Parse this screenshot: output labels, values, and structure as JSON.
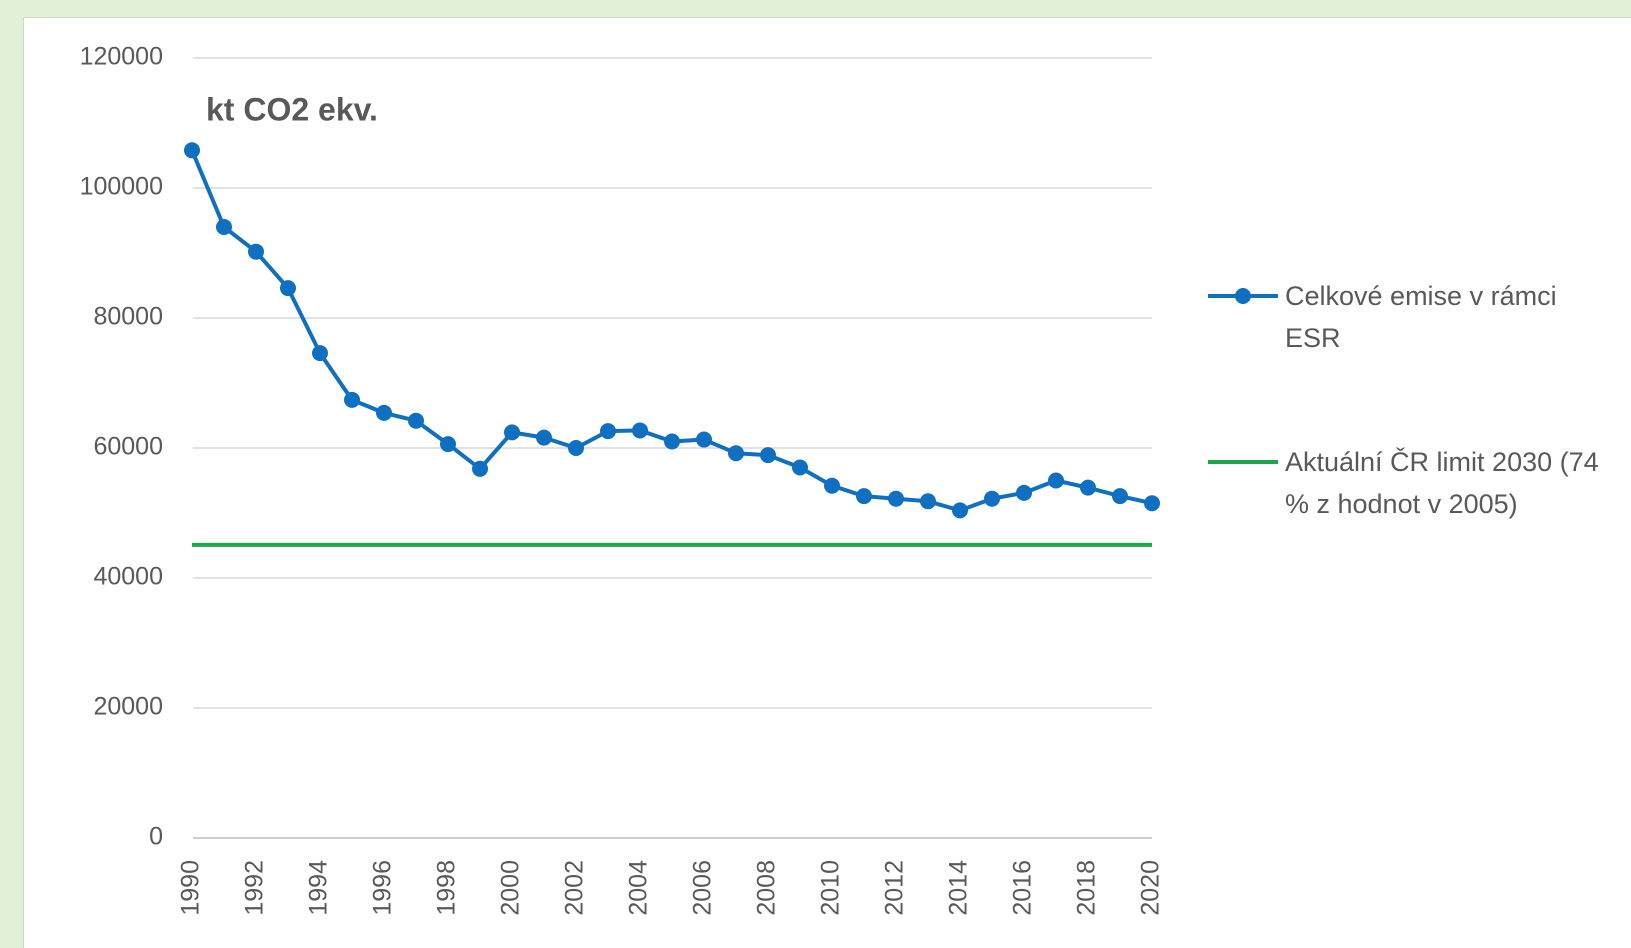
{
  "chart_data": {
    "type": "line",
    "title": "kt CO2 ekv.",
    "x": [
      1990,
      1991,
      1992,
      1993,
      1994,
      1995,
      1996,
      1997,
      1998,
      1999,
      2000,
      2001,
      2002,
      2003,
      2004,
      2005,
      2006,
      2007,
      2008,
      2009,
      2010,
      2011,
      2012,
      2013,
      2014,
      2015,
      2016,
      2017,
      2018,
      2019,
      2020
    ],
    "series": [
      {
        "name": "Celkové emise v rámci ESR",
        "color": "#0f6fc1",
        "marker": true,
        "values": [
          105800,
          94000,
          90200,
          84600,
          74600,
          67400,
          65400,
          64200,
          60600,
          56800,
          62400,
          61600,
          60000,
          62600,
          62700,
          61000,
          61300,
          59200,
          58900,
          57000,
          54200,
          52600,
          52200,
          51800,
          50400,
          52200,
          53100,
          55000,
          53900,
          52600,
          51500
        ]
      },
      {
        "name": "Aktuální ČR limit 2030 (74 % z hodnot v 2005)",
        "color": "#1aa84a",
        "marker": false,
        "values": [
          45100,
          45100,
          45100,
          45100,
          45100,
          45100,
          45100,
          45100,
          45100,
          45100,
          45100,
          45100,
          45100,
          45100,
          45100,
          45100,
          45100,
          45100,
          45100,
          45100,
          45100,
          45100,
          45100,
          45100,
          45100,
          45100,
          45100,
          45100,
          45100,
          45100,
          45100
        ]
      }
    ],
    "xlim": [
      1990,
      2020
    ],
    "xticks": [
      1990,
      1992,
      1994,
      1996,
      1998,
      2000,
      2002,
      2004,
      2006,
      2008,
      2010,
      2012,
      2014,
      2016,
      2018,
      2020
    ],
    "ylim": [
      0,
      120000
    ],
    "yticks": [
      0,
      20000,
      40000,
      60000,
      80000,
      100000,
      120000
    ],
    "grid": true,
    "legend": "right"
  }
}
